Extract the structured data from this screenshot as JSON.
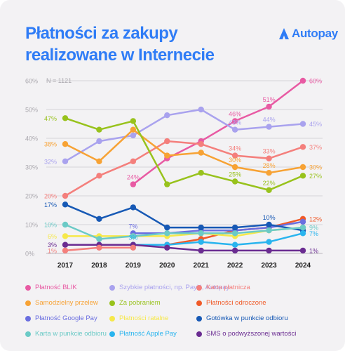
{
  "header": {
    "title_line1": "Płatności za zakupy",
    "title_line2": "realizowane w Internecie",
    "brand_name": "Autopay",
    "brand_icon": "autopay-logo-icon",
    "brand_color": "#2f7cf6"
  },
  "chart_data": {
    "type": "line",
    "note": "N = 1121",
    "x": [
      "2017",
      "2018",
      "2019",
      "2020",
      "2021",
      "2022",
      "2023",
      "2024"
    ],
    "ylim": [
      0,
      60
    ],
    "yticks": [
      "0%",
      "10%",
      "20%",
      "30%",
      "40%",
      "50%",
      "60%"
    ],
    "grid": true,
    "legend_position": "bottom",
    "series": [
      {
        "name": "Płatność BLIK",
        "color": "#e85aa3",
        "values": [
          null,
          null,
          24,
          33,
          39,
          46,
          51,
          60
        ],
        "labels": [
          null,
          null,
          "24%",
          null,
          null,
          "46%",
          "51%",
          "60%"
        ]
      },
      {
        "name": "Szybkie płatności, np. PayU, Autopay",
        "color": "#a9a2ee",
        "values": [
          32,
          39,
          41,
          48,
          50,
          43,
          44,
          45
        ],
        "labels": [
          "32%",
          null,
          null,
          null,
          null,
          "43%",
          "44%",
          "45%"
        ]
      },
      {
        "name": "Karta płatnicza",
        "color": "#f47f7c",
        "values": [
          20,
          27,
          32,
          39,
          38,
          34,
          33,
          37
        ],
        "labels": [
          "20%",
          null,
          null,
          null,
          null,
          "34%",
          "33%",
          "37%"
        ]
      },
      {
        "name": "Samodzielny przelew",
        "color": "#f7a234",
        "values": [
          38,
          32,
          43,
          34,
          35,
          30,
          28,
          30
        ],
        "labels": [
          "38%",
          null,
          null,
          null,
          null,
          "30%",
          "28%",
          "30%"
        ]
      },
      {
        "name": "Za pobraniem",
        "color": "#98c21c",
        "values": [
          47,
          43,
          46,
          24,
          28,
          25,
          22,
          27
        ],
        "labels": [
          "47%",
          null,
          null,
          null,
          null,
          "25%",
          "22%",
          "27%"
        ]
      },
      {
        "name": "Płatności odroczone",
        "color": "#f05a28",
        "values": [
          null,
          null,
          null,
          3,
          5,
          8,
          9,
          12
        ],
        "labels": [
          null,
          null,
          null,
          null,
          null,
          null,
          null,
          "12%"
        ]
      },
      {
        "name": "Płatność Google Pay",
        "color": "#6a6ee0",
        "values": [
          null,
          null,
          7,
          7,
          8,
          8,
          9,
          11
        ],
        "labels": [
          null,
          null,
          "7%",
          null,
          null,
          null,
          null,
          null
        ]
      },
      {
        "name": "Płatności ratalne",
        "color": "#f6e84a",
        "values": [
          6,
          6,
          6,
          6,
          7,
          6,
          8,
          9
        ],
        "labels": [
          "6%",
          null,
          null,
          null,
          null,
          null,
          null,
          null
        ]
      },
      {
        "name": "Gotówka w punkcie odbioru",
        "color": "#1759b5",
        "values": [
          17,
          12,
          16,
          9,
          9,
          9,
          10,
          8
        ],
        "labels": [
          "17%",
          null,
          null,
          null,
          null,
          null,
          "10%",
          null
        ]
      },
      {
        "name": "Karta w punkcie odbioru",
        "color": "#6bcac6",
        "values": [
          10,
          5,
          6,
          7,
          7,
          7,
          8,
          9
        ],
        "labels": [
          "10%",
          null,
          null,
          null,
          null,
          null,
          null,
          "9%"
        ]
      },
      {
        "name": "Płatność Apple Pay",
        "color": "#29b4ee",
        "values": [
          null,
          null,
          3,
          3,
          4,
          3,
          4,
          7
        ],
        "labels": [
          null,
          null,
          "3%",
          null,
          null,
          null,
          null,
          "7%"
        ]
      },
      {
        "name": "SMS o podwyższonej wartości",
        "color": "#6a2c91",
        "values": [
          3,
          3,
          3,
          2,
          1,
          1,
          1,
          1
        ],
        "labels": [
          "3%",
          null,
          null,
          null,
          null,
          null,
          null,
          "1%"
        ]
      },
      {
        "name": "",
        "color": "#f47f7c",
        "values": [
          1,
          2,
          2,
          null,
          null,
          null,
          null,
          null
        ],
        "labels": [
          "1%",
          null,
          null,
          null,
          null,
          null,
          null,
          null
        ]
      }
    ],
    "legend": [
      {
        "name": "Płatność BLIK",
        "color": "#e85aa3"
      },
      {
        "name": "Szybkie płatności, np. PayU, Autopay",
        "color": "#a9a2ee"
      },
      {
        "name": "Karta płatnicza",
        "color": "#f47f7c"
      },
      {
        "name": "Samodzielny przelew",
        "color": "#f7a234"
      },
      {
        "name": "Za pobraniem",
        "color": "#98c21c"
      },
      {
        "name": "Płatności odroczone",
        "color": "#f05a28"
      },
      {
        "name": "Płatność Google Pay",
        "color": "#6a6ee0"
      },
      {
        "name": "Płatności ratalne",
        "color": "#f6e84a"
      },
      {
        "name": "Gotówka w punkcie odbioru",
        "color": "#1759b5"
      },
      {
        "name": "Karta w punkcie odbioru",
        "color": "#6bcac6"
      },
      {
        "name": "Płatność Apple Pay",
        "color": "#29b4ee"
      },
      {
        "name": "SMS o podwyższonej wartości",
        "color": "#6a2c91"
      }
    ]
  }
}
